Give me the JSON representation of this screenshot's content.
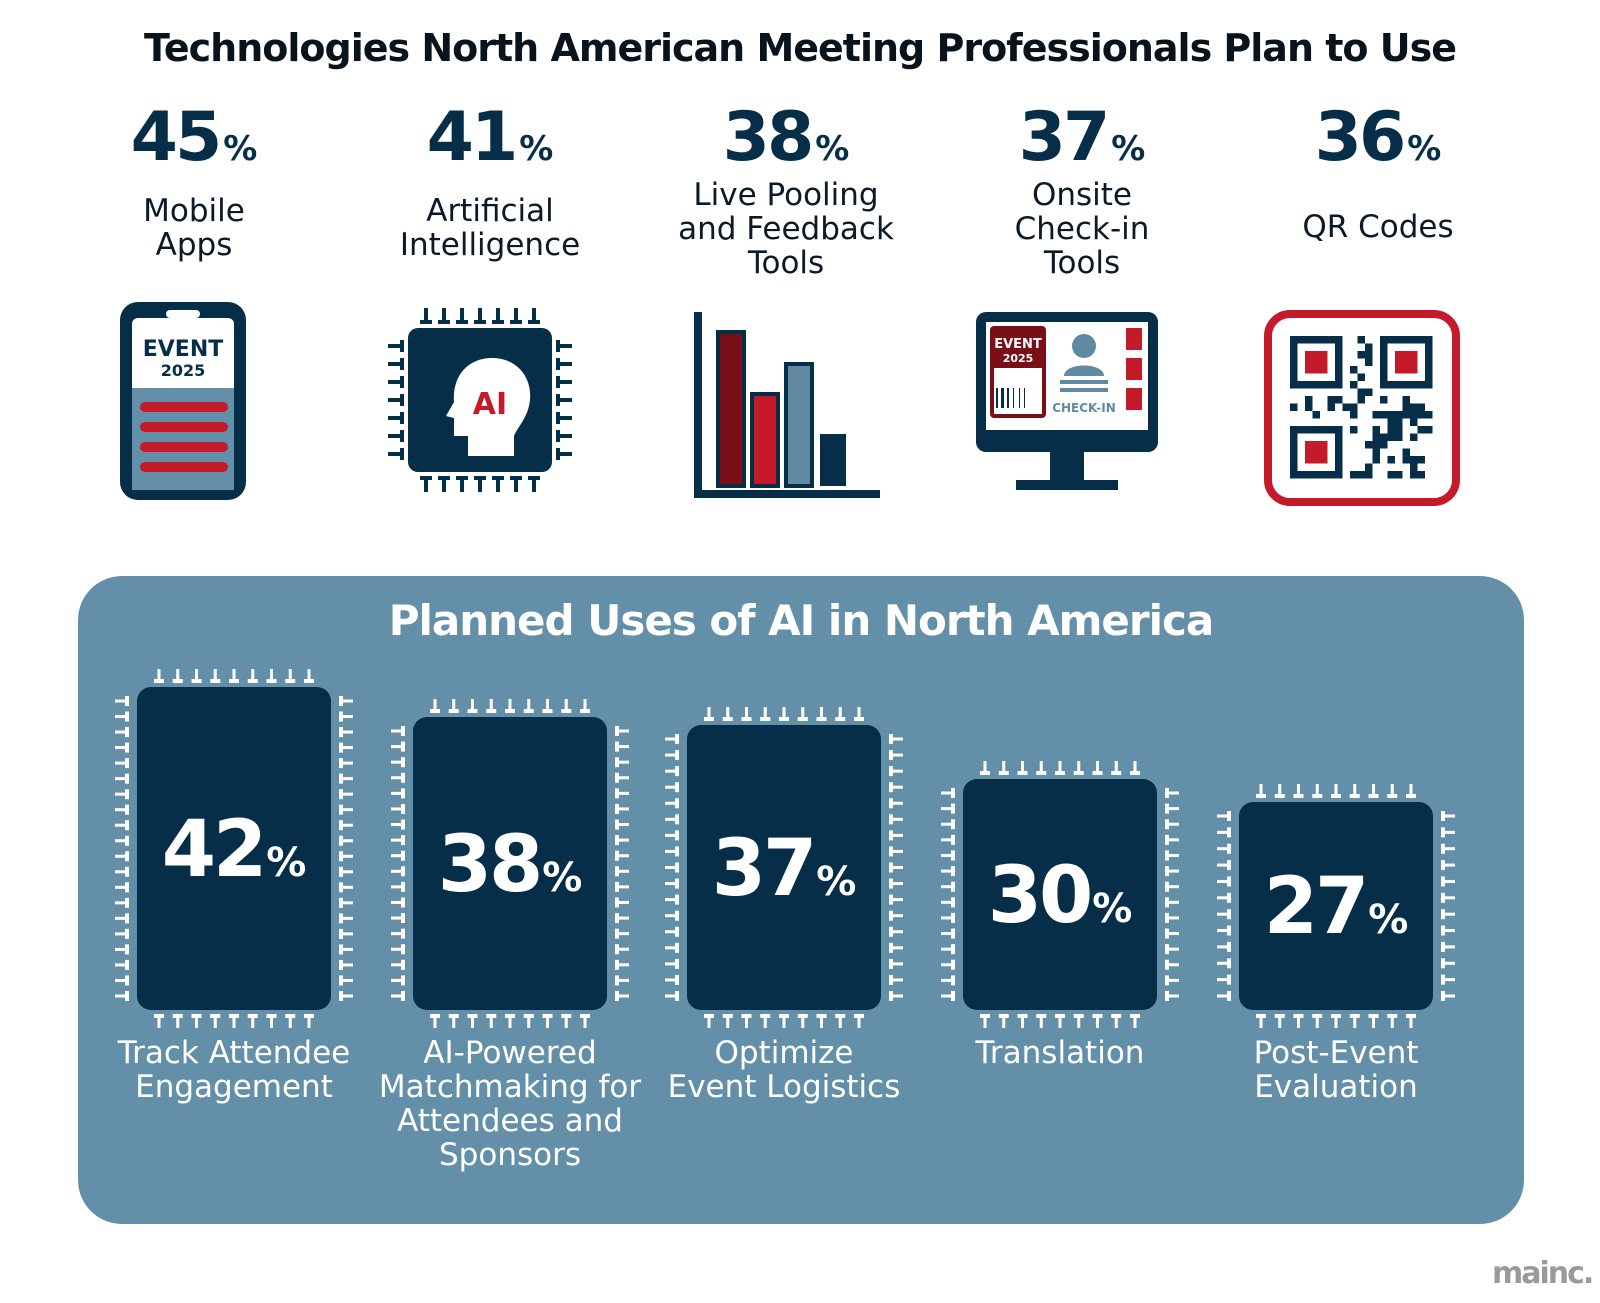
{
  "title": "Technologies North American Meeting Professionals Plan to Use",
  "colors": {
    "navy": "#062e48",
    "red": "#c41a2a",
    "dark_red": "#7a0f18",
    "steel_blue": "#5f8aa1",
    "panel_blue": "#6390a8"
  },
  "top": [
    {
      "value": "45",
      "sign": "%",
      "label": [
        "Mobile",
        "Apps"
      ],
      "icon": "mobile-phone-icon",
      "icon_text": [
        "EVENT",
        "2025"
      ]
    },
    {
      "value": "41",
      "sign": "%",
      "label": [
        "Artificial",
        "Intelligence"
      ],
      "icon": "ai-chip-icon",
      "icon_text": [
        "AI"
      ]
    },
    {
      "value": "38",
      "sign": "%",
      "label": [
        "Live Pooling",
        "and Feedback",
        "Tools"
      ],
      "icon": "bar-chart-icon",
      "icon_text": []
    },
    {
      "value": "37",
      "sign": "%",
      "label": [
        "Onsite",
        "Check-in",
        "Tools"
      ],
      "icon": "check-in-monitor-icon",
      "icon_text": [
        "EVENT",
        "2025",
        "CHECK-IN"
      ]
    },
    {
      "value": "36",
      "sign": "%",
      "label": [
        "QR Codes"
      ],
      "icon": "qr-code-icon",
      "icon_text": []
    }
  ],
  "panel": {
    "title": "Planned Uses of AI in North America",
    "items": [
      {
        "value": "42",
        "sign": "%",
        "label": [
          "Track Attendee",
          "Engagement"
        ]
      },
      {
        "value": "38",
        "sign": "%",
        "label": [
          "AI-Powered",
          "Matchmaking for",
          "Attendees and",
          "Sponsors"
        ]
      },
      {
        "value": "37",
        "sign": "%",
        "label": [
          "Optimize",
          "Event Logistics"
        ]
      },
      {
        "value": "30",
        "sign": "%",
        "label": [
          "Translation"
        ]
      },
      {
        "value": "27",
        "sign": "%",
        "label": [
          "Post-Event",
          "Evaluation"
        ]
      }
    ]
  },
  "logo": "mainc.",
  "chart_data": [
    {
      "type": "table",
      "title": "Technologies North American Meeting Professionals Plan to Use",
      "categories": [
        "Mobile Apps",
        "Artificial Intelligence",
        "Live Pooling and Feedback Tools",
        "Onsite Check-in Tools",
        "QR Codes"
      ],
      "values": [
        45,
        41,
        38,
        37,
        36
      ]
    },
    {
      "type": "bar",
      "title": "Planned Uses of AI in North America",
      "categories": [
        "Track Attendee Engagement",
        "AI-Powered Matchmaking for Attendees and Sponsors",
        "Optimize Event Logistics",
        "Translation",
        "Post-Event Evaluation"
      ],
      "values": [
        42,
        38,
        37,
        30,
        27
      ]
    }
  ]
}
